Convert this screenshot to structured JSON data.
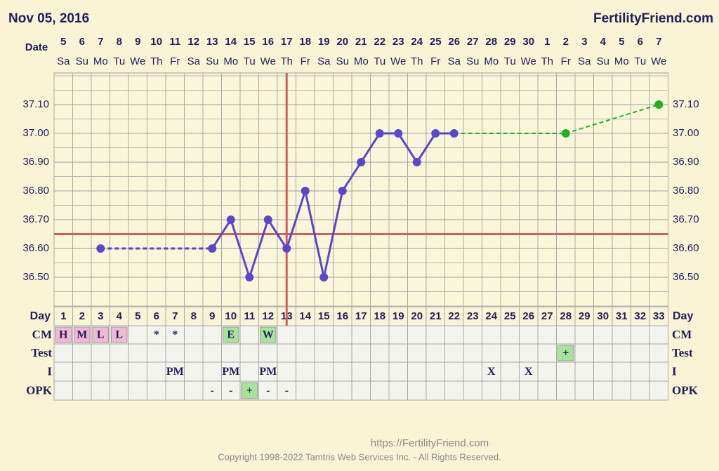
{
  "chart_data": {
    "type": "line",
    "title": "Nov 05, 2016",
    "site": "FertilityFriend.com",
    "date_label": "Date",
    "dates": [
      5,
      6,
      7,
      8,
      9,
      10,
      11,
      12,
      13,
      14,
      15,
      16,
      17,
      18,
      19,
      20,
      21,
      22,
      23,
      24,
      25,
      26,
      27,
      28,
      29,
      30,
      1,
      2,
      3,
      4,
      5,
      6,
      7
    ],
    "weekdays": [
      "Sa",
      "Su",
      "Mo",
      "Tu",
      "We",
      "Th",
      "Fr",
      "Sa",
      "Su",
      "Mo",
      "Tu",
      "We",
      "Th",
      "Fr",
      "Sa",
      "Su",
      "Mo",
      "Tu",
      "We",
      "Th",
      "Fr",
      "Sa",
      "Su",
      "Mo",
      "Tu",
      "We",
      "Th",
      "Fr",
      "Sa",
      "Su",
      "Mo",
      "Tu",
      "We"
    ],
    "day_label": "Day",
    "categories": [
      1,
      2,
      3,
      4,
      5,
      6,
      7,
      8,
      9,
      10,
      11,
      12,
      13,
      14,
      15,
      16,
      17,
      18,
      19,
      20,
      21,
      22,
      23,
      24,
      25,
      26,
      27,
      28,
      29,
      30,
      31,
      32,
      33
    ],
    "series": [
      {
        "name": "Temperature",
        "color": "#5a48cc",
        "style": "solid",
        "values": [
          null,
          null,
          36.6,
          null,
          null,
          null,
          null,
          null,
          36.6,
          36.7,
          36.5,
          36.7,
          36.6,
          36.8,
          36.5,
          36.8,
          36.9,
          37.0,
          37.0,
          36.9,
          37.0,
          37.0,
          null,
          null,
          null,
          null,
          null,
          null,
          null,
          null,
          null,
          null,
          null
        ]
      },
      {
        "name": "Predicted",
        "color": "#22b022",
        "style": "dashed",
        "values": [
          null,
          null,
          null,
          null,
          null,
          null,
          null,
          null,
          null,
          null,
          null,
          null,
          null,
          null,
          null,
          null,
          null,
          null,
          null,
          null,
          null,
          37.0,
          null,
          null,
          null,
          null,
          null,
          37.0,
          null,
          null,
          null,
          null,
          37.1
        ]
      }
    ],
    "coverline": 36.65,
    "ovulation_day": 13,
    "line_color": "#d95c5c",
    "ylim": [
      36.4,
      37.2
    ],
    "yticks": [
      {
        "value": 36.5,
        "label": "36.50"
      },
      {
        "value": 36.6,
        "label": "36.60"
      },
      {
        "value": 36.7,
        "label": "36.70"
      },
      {
        "value": 36.8,
        "label": "36.80"
      },
      {
        "value": 36.9,
        "label": "36.90"
      },
      {
        "value": 37.0,
        "label": "37.00"
      },
      {
        "value": 37.1,
        "label": "37.10"
      }
    ],
    "grid": true,
    "rows": [
      {
        "label": "CM",
        "values": [
          "H",
          "M",
          "L",
          "L",
          null,
          "*",
          "*",
          null,
          null,
          "E",
          null,
          "W",
          null,
          null,
          null,
          null,
          null,
          null,
          null,
          null,
          null,
          null,
          null,
          null,
          null,
          null,
          null,
          null,
          null,
          null,
          null,
          null,
          null
        ]
      },
      {
        "label": "Test",
        "values": [
          null,
          null,
          null,
          null,
          null,
          null,
          null,
          null,
          null,
          null,
          null,
          null,
          null,
          null,
          null,
          null,
          null,
          null,
          null,
          null,
          null,
          null,
          null,
          null,
          null,
          null,
          null,
          "+",
          null,
          null,
          null,
          null,
          null
        ]
      },
      {
        "label": "I",
        "values": [
          null,
          null,
          null,
          null,
          null,
          null,
          "PM",
          null,
          null,
          "PM",
          null,
          "PM",
          null,
          null,
          null,
          null,
          null,
          null,
          null,
          null,
          null,
          null,
          null,
          "X",
          null,
          "X",
          null,
          null,
          null,
          null,
          null,
          null,
          null
        ]
      },
      {
        "label": "OPK",
        "values": [
          null,
          null,
          null,
          null,
          null,
          null,
          null,
          null,
          "-",
          "-",
          "+",
          "-",
          "-",
          null,
          null,
          null,
          null,
          null,
          null,
          null,
          null,
          null,
          null,
          null,
          null,
          null,
          null,
          null,
          null,
          null,
          null,
          null,
          null
        ]
      }
    ],
    "footer_url": "https://FertilityFriend.com",
    "copyright": "Copyright 1998-2022 Tamtris Web Services Inc. - All Rights Reserved."
  }
}
